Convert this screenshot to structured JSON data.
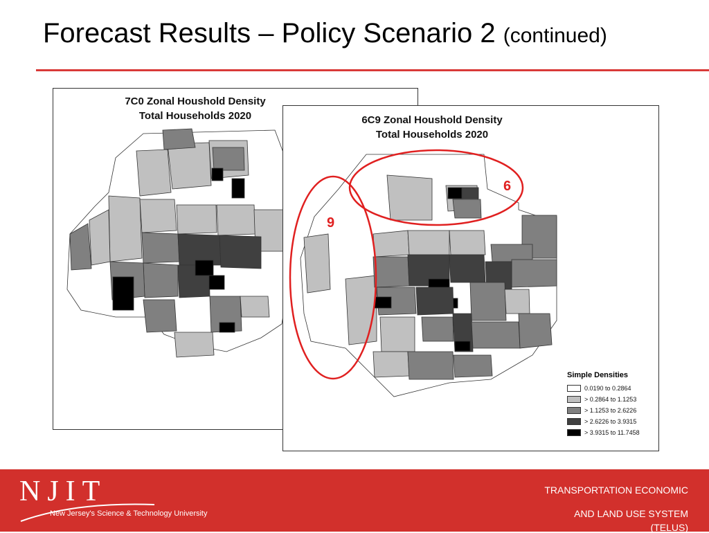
{
  "slide": {
    "title": "Forecast Results – Policy Scenario 2",
    "title_suffix": "(continued)"
  },
  "map_left": {
    "title_line1": "7C0 Zonal Houshold Density",
    "title_line2": "Total Households 2020"
  },
  "map_right": {
    "title_line1": "6C9 Zonal Houshold Density",
    "title_line2": "Total Households 2020",
    "annotations": [
      {
        "label": "9"
      },
      {
        "label": "6"
      }
    ]
  },
  "legend": {
    "title": "Simple Densities",
    "items": [
      {
        "label": "0.0190 to 0.2864",
        "color": "#ffffff"
      },
      {
        "label": "> 0.2864 to 1.1253",
        "color": "#c0c0c0"
      },
      {
        "label": "> 1.1253 to 2.6226",
        "color": "#808080"
      },
      {
        "label": "> 2.6226 to 3.9315",
        "color": "#404040"
      },
      {
        "label": "> 3.9315 to 11.7458",
        "color": "#000000"
      }
    ]
  },
  "footer": {
    "logo_text": "NJIT",
    "logo_subtitle": "New Jersey's Science & Technology University",
    "line1": "TRANSPORTATION ECONOMIC",
    "line2": "AND LAND USE SYSTEM",
    "line3": "(TELUS)"
  },
  "colors": {
    "accent": "#d93a38",
    "footer": "#d2302c",
    "annotation": "#e02020"
  }
}
